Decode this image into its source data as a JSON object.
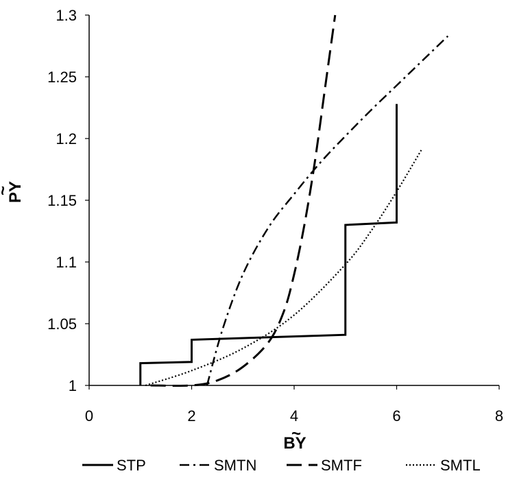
{
  "chart_data": {
    "type": "line",
    "xlabel": "BY",
    "ylabel": "PY",
    "xlabel_accent": "~",
    "ylabel_accent": "~",
    "xlim": [
      0,
      8
    ],
    "ylim": [
      1,
      1.3
    ],
    "xticks": [
      0,
      2,
      4,
      6,
      8
    ],
    "yticks": [
      1,
      1.05,
      1.1,
      1.15,
      1.2,
      1.25,
      1.3
    ],
    "xtick_labels": [
      "0",
      "2",
      "4",
      "6",
      "8"
    ],
    "ytick_labels": [
      "1",
      "1.05",
      "1.1",
      "1.15",
      "1.2",
      "1.25",
      "1.3"
    ],
    "grid": false,
    "legend_position": "bottom",
    "series": [
      {
        "name": "STP",
        "style": "solid",
        "color": "#000000",
        "x": [
          1.0,
          1.0,
          2.0,
          2.0,
          5.0,
          5.0,
          6.0,
          6.0
        ],
        "y": [
          1.0,
          1.018,
          1.019,
          1.037,
          1.041,
          1.13,
          1.132,
          1.228
        ]
      },
      {
        "name": "SMTN",
        "style": "dashdot",
        "color": "#000000",
        "x": [
          2.3,
          2.6,
          3.0,
          3.5,
          4.0,
          4.5,
          5.0,
          5.5,
          6.0,
          6.5,
          7.0
        ],
        "y": [
          1.0,
          1.045,
          1.09,
          1.128,
          1.155,
          1.18,
          1.202,
          1.223,
          1.243,
          1.263,
          1.283
        ]
      },
      {
        "name": "SMTF",
        "style": "dashed",
        "color": "#000000",
        "x": [
          1.2,
          2.0,
          2.5,
          3.0,
          3.5,
          3.8,
          4.0,
          4.2,
          4.4,
          4.6,
          4.8
        ],
        "y": [
          1.0,
          1.0,
          1.004,
          1.015,
          1.035,
          1.06,
          1.09,
          1.13,
          1.18,
          1.24,
          1.3
        ]
      },
      {
        "name": "SMTL",
        "style": "dotted",
        "color": "#000000",
        "x": [
          1.1,
          2.0,
          3.0,
          4.0,
          5.0,
          5.5,
          6.0,
          6.5
        ],
        "y": [
          1.0,
          1.012,
          1.03,
          1.057,
          1.098,
          1.125,
          1.157,
          1.192
        ]
      }
    ]
  }
}
